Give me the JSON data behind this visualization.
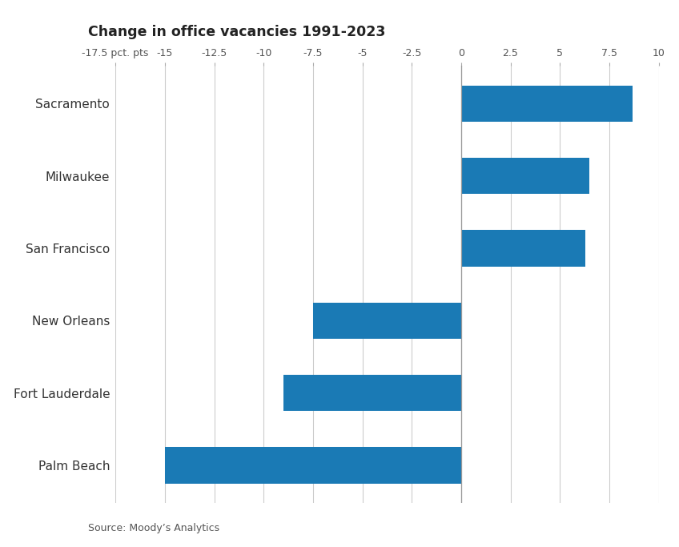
{
  "title": "Change in office vacancies 1991-2023",
  "categories": [
    "Sacramento",
    "Milwaukee",
    "San Francisco",
    "New Orleans",
    "Fort Lauderdale",
    "Palm Beach"
  ],
  "values": [
    8.7,
    6.5,
    6.3,
    -7.5,
    -9.0,
    -15.0
  ],
  "bar_color": "#1a7ab5",
  "xlim": [
    -17.5,
    10
  ],
  "xticks": [
    -17.5,
    -15,
    -12.5,
    -10,
    -7.5,
    -5,
    -2.5,
    0,
    2.5,
    5,
    7.5,
    10
  ],
  "xtick_labels": [
    "-17.5 pct. pts",
    "-15",
    "-12.5",
    "-10",
    "-7.5",
    "-5",
    "-2.5",
    "0",
    "2.5",
    "5",
    "7.5",
    "10"
  ],
  "source": "Source: Moody’s Analytics",
  "background_color": "#ffffff",
  "grid_color": "#cccccc",
  "bar_height": 0.5,
  "title_fontsize": 12.5,
  "label_fontsize": 11,
  "tick_fontsize": 9,
  "source_fontsize": 9
}
